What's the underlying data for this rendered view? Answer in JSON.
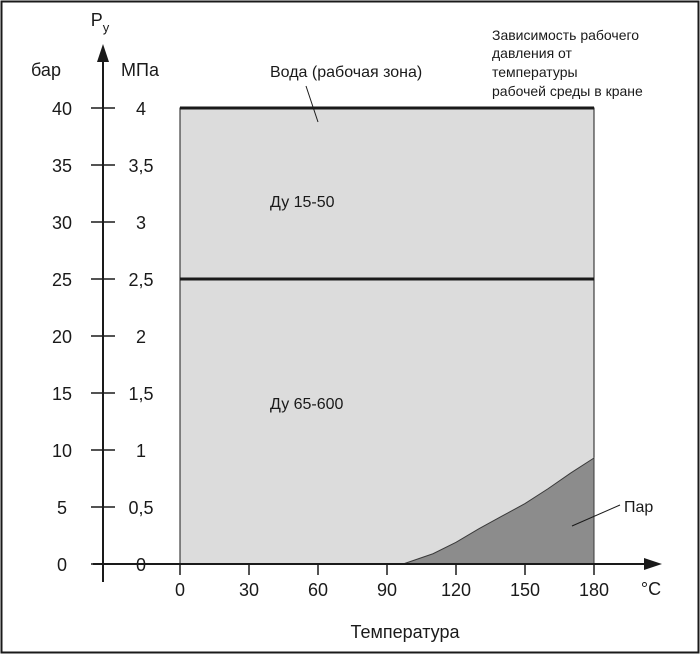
{
  "chart_data": {
    "type": "area",
    "title": "",
    "note": [
      "Зависимость рабочего",
      "давления от",
      "температуры",
      "рабочей среды в кране"
    ],
    "xlabel": "Температура",
    "xunit": "°C",
    "ylabel": "P",
    "ylabel_sub": "у",
    "y_units_left": "бар",
    "y_units_right": "МПа",
    "xlim": [
      0,
      180
    ],
    "ylim": [
      0,
      40
    ],
    "x_ticks": [
      0,
      30,
      60,
      90,
      120,
      150,
      180
    ],
    "x_tick_labels": [
      "0",
      "30",
      "60",
      "90",
      "120",
      "150",
      "180"
    ],
    "y_ticks_bar": [
      0,
      5,
      10,
      15,
      20,
      25,
      30,
      35,
      40
    ],
    "y_tick_labels_bar": [
      "0",
      "5",
      "10",
      "15",
      "20",
      "25",
      "30",
      "35",
      "40"
    ],
    "y_tick_labels_mpa": [
      "0",
      "0,5",
      "1",
      "1,5",
      "2",
      "2,5",
      "3",
      "3,5",
      "4"
    ],
    "regions": [
      {
        "label": "Вода (рабочая зона)",
        "x_range": [
          0,
          180
        ],
        "y_range": [
          0,
          40
        ],
        "color": "#dcdcdc"
      },
      {
        "label": "Ду 15-50",
        "pressure_bar": 40,
        "pressure_mpa": 4
      },
      {
        "label": "Ду 65-600",
        "pressure_bar": 25,
        "pressure_mpa": 2.5
      },
      {
        "label": "Пар",
        "color": "#8c8c8c"
      }
    ],
    "steam_curve": {
      "x": [
        97,
        110,
        120,
        130,
        140,
        150,
        160,
        170,
        180
      ],
      "y": [
        0,
        0.9,
        1.9,
        3.1,
        4.2,
        5.3,
        6.6,
        8.0,
        9.3
      ]
    },
    "limit_lines": [
      {
        "y": 40,
        "label": "Ду 15-50"
      },
      {
        "y": 25,
        "label": "Ду 65-600"
      }
    ],
    "colors": {
      "zone": "#dcdcdc",
      "steam": "#8c8c8c",
      "line": "#1a1a1a"
    }
  }
}
